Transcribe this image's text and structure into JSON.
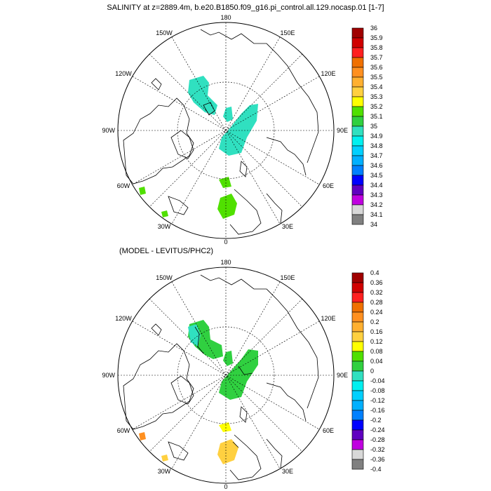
{
  "panels": [
    {
      "title": "SALINITY at z=2889.4m, b.e20.B1850.f09_g16.pi_control.all.129.nocasp.01 [1-7]",
      "lon_labels": {
        "top": "180",
        "bottom": "0",
        "left": "90W",
        "right": "90E",
        "ul1": "150W",
        "ul2": "120W",
        "ur1": "150E",
        "ur2": "120E",
        "ll1": "60W",
        "ll2": "30W",
        "lr1": "60E",
        "lr2": "30E"
      },
      "colorbar": {
        "labels": [
          "36",
          "35.9",
          "35.8",
          "35.7",
          "35.6",
          "35.5",
          "35.4",
          "35.3",
          "35.2",
          "35.1",
          "35",
          "34.9",
          "34.8",
          "34.7",
          "34.6",
          "34.5",
          "34.4",
          "34.3",
          "34.2",
          "34.1",
          "34"
        ]
      }
    },
    {
      "title": "(MODEL - LEVITUS/PHC2)",
      "lon_labels": {
        "top": "180",
        "bottom": "0",
        "left": "90W",
        "right": "90E",
        "ul1": "150W",
        "ul2": "120W",
        "ur1": "150E",
        "ur2": "120E",
        "ll1": "60W",
        "ll2": "30W",
        "lr1": "60E",
        "lr2": "30E"
      },
      "colorbar": {
        "labels": [
          "0.4",
          "0.36",
          "0.32",
          "0.28",
          "0.24",
          "0.2",
          "0.16",
          "0.12",
          "0.08",
          "0.04",
          "0",
          "-0.04",
          "-0.08",
          "-0.12",
          "-0.16",
          "-0.2",
          "-0.24",
          "-0.28",
          "-0.32",
          "-0.36",
          "-0.4"
        ]
      }
    }
  ],
  "palette": [
    "#a00000",
    "#d00000",
    "#ff2020",
    "#f07000",
    "#ff9020",
    "#ffb030",
    "#ffd040",
    "#ffff00",
    "#50e000",
    "#30d040",
    "#30e0c0",
    "#00f0f0",
    "#00d0ff",
    "#00b0ff",
    "#0080ff",
    "#0000ff",
    "#6000c0",
    "#c000e0",
    "#d8d8d8",
    "#808080"
  ]
}
